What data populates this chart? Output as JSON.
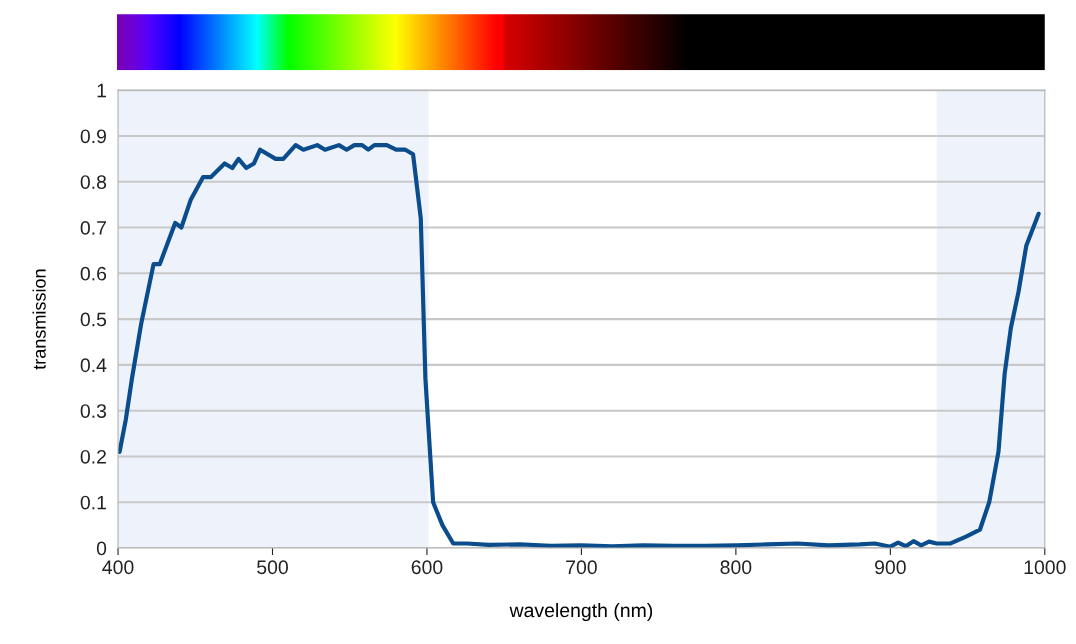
{
  "chart_data": {
    "type": "line",
    "xlabel": "wavelength (nm)",
    "ylabel": "transmission",
    "xlim": [
      400,
      1000
    ],
    "xticks": [
      400,
      500,
      600,
      700,
      800,
      900,
      1000
    ],
    "ylim": [
      0,
      1
    ],
    "yticks": [
      0,
      0.1,
      0.2,
      0.3,
      0.4,
      0.5,
      0.6,
      0.7,
      0.8,
      0.9,
      1
    ],
    "grid": "y",
    "marker": "none",
    "line_style": "solid",
    "bands": [
      {
        "axis": "x",
        "from": 400,
        "to": 601,
        "color": "#edf2fb"
      },
      {
        "axis": "x",
        "from": 930,
        "to": 1000,
        "color": "#edf2fb"
      }
    ],
    "series": [
      {
        "color": "#0b4c8c",
        "x": [
          401,
          405,
          409,
          415,
          423,
          427,
          437,
          441,
          447,
          455,
          460,
          469,
          474,
          478,
          483,
          488,
          492,
          502,
          507,
          515,
          520,
          529,
          534,
          543,
          548,
          553,
          558,
          562,
          566,
          574,
          580,
          586,
          591,
          596,
          599,
          604,
          610,
          617,
          626,
          640,
          660,
          680,
          700,
          720,
          740,
          760,
          780,
          800,
          820,
          840,
          860,
          880,
          890,
          900,
          905,
          910,
          915,
          920,
          925,
          930,
          939,
          949,
          958,
          964,
          970,
          974,
          978,
          983,
          988,
          996
        ],
        "values": [
          0.21,
          0.28,
          0.37,
          0.49,
          0.62,
          0.62,
          0.71,
          0.7,
          0.76,
          0.81,
          0.81,
          0.84,
          0.83,
          0.85,
          0.83,
          0.84,
          0.87,
          0.85,
          0.85,
          0.88,
          0.87,
          0.88,
          0.87,
          0.88,
          0.87,
          0.88,
          0.88,
          0.87,
          0.88,
          0.88,
          0.87,
          0.87,
          0.86,
          0.72,
          0.37,
          0.1,
          0.05,
          0.01,
          0.01,
          0.007,
          0.008,
          0.005,
          0.006,
          0.004,
          0.006,
          0.005,
          0.005,
          0.006,
          0.008,
          0.01,
          0.006,
          0.008,
          0.01,
          0.003,
          0.012,
          0.004,
          0.015,
          0.006,
          0.014,
          0.01,
          0.01,
          0.025,
          0.04,
          0.1,
          0.21,
          0.38,
          0.48,
          0.56,
          0.66,
          0.73
        ]
      }
    ]
  }
}
